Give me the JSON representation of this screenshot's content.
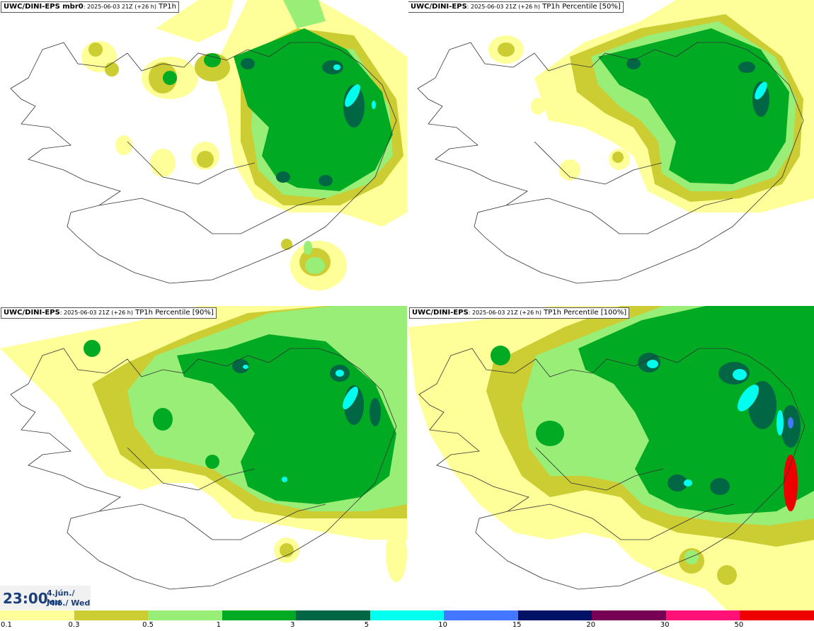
{
  "panels": [
    {
      "model": "UWC/DINI-EPS mbr0",
      "run": ": 2025-06-03 21Z (+26 h)",
      "field": "TP1h"
    },
    {
      "model": "UWC/DINI-EPS",
      "run": ": 2025-06-03 21Z (+26 h)",
      "field": "TP1h Percentile [50%]"
    },
    {
      "model": "UWC/DINI-EPS",
      "run": ": 2025-06-03 21Z (+26 h)",
      "field": "TP1h Percentile [90%]"
    },
    {
      "model": "UWC/DINI-EPS",
      "run": ": 2025-06-03 21Z (+26 h)",
      "field": "TP1h Percentile [100%]"
    }
  ],
  "timestamp": {
    "time": "23:00",
    "date_line1": "4.jún./ Jun",
    "date_line2": "Mið./ Wed"
  },
  "legend": {
    "colors": [
      "#ffff99",
      "#cccc33",
      "#99ee77",
      "#00aa22",
      "#006644",
      "#00ffee",
      "#4477ff",
      "#001166",
      "#770055",
      "#ff1177",
      "#ee0000"
    ],
    "ticks": [
      "0.1",
      "0.3",
      "0.5",
      "1",
      "3",
      "5",
      "10",
      "15",
      "20",
      "30",
      "50"
    ]
  },
  "map_colors": {
    "c01": "#ffff99",
    "c03": "#cccc33",
    "c05": "#99ee77",
    "c1": "#00aa22",
    "c3": "#006644",
    "c5": "#00ffee",
    "coast": "#333333"
  }
}
